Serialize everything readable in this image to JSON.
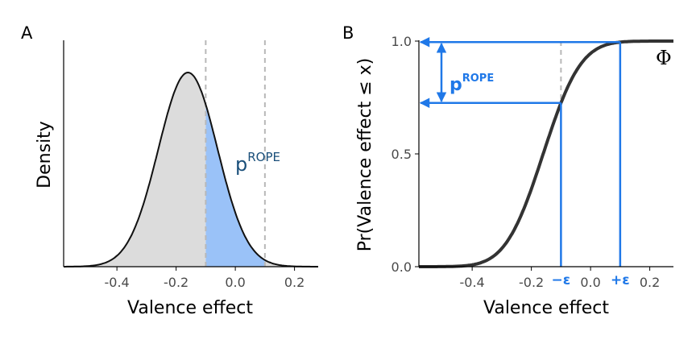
{
  "colors": {
    "curve": "#111111",
    "cdf_curve": "#333333",
    "fill_outside": "#dcdcdc",
    "fill_rope": "#9ac2f8",
    "dashed": "#b8b8b8",
    "arrow_blue": "#1f78e8",
    "rope_label_a": "#1a4f7a"
  },
  "chart_data": [
    {
      "type": "area",
      "panel": "A",
      "xlabel": "Valence effect",
      "ylabel": "Density",
      "xlim": [
        -0.58,
        0.28
      ],
      "xticks": [
        -0.4,
        -0.2,
        0.0,
        0.2
      ],
      "xtick_labels": [
        "-0.4",
        "-0.2",
        "0.0",
        "0.2"
      ],
      "distribution": {
        "family": "normal",
        "mean": -0.16,
        "sd": 0.1
      },
      "rope": [
        -0.1,
        0.1
      ],
      "annotation": {
        "text": "p",
        "superscript": "ROPE"
      }
    },
    {
      "type": "line",
      "panel": "B",
      "xlabel": "Valence effect",
      "ylabel": "Pr(Valence effect ≤ x)",
      "xlim": [
        -0.58,
        0.28
      ],
      "ylim": [
        0,
        1
      ],
      "xticks": [
        -0.4,
        -0.2,
        0.0,
        0.2
      ],
      "xtick_labels": [
        "-0.4",
        "-0.2",
        "0.0",
        "0.2"
      ],
      "yticks": [
        0.0,
        0.5,
        1.0
      ],
      "ytick_labels": [
        "0.0",
        "0.5",
        "1.0"
      ],
      "series": [
        {
          "name": "Φ",
          "distribution": {
            "family": "normal-cdf",
            "mean": -0.16,
            "sd": 0.1
          }
        }
      ],
      "rope": [
        -0.1,
        0.1
      ],
      "rope_labels": [
        "−ε",
        "+ε"
      ],
      "annotation": {
        "text": "p",
        "superscript": "ROPE"
      }
    }
  ]
}
